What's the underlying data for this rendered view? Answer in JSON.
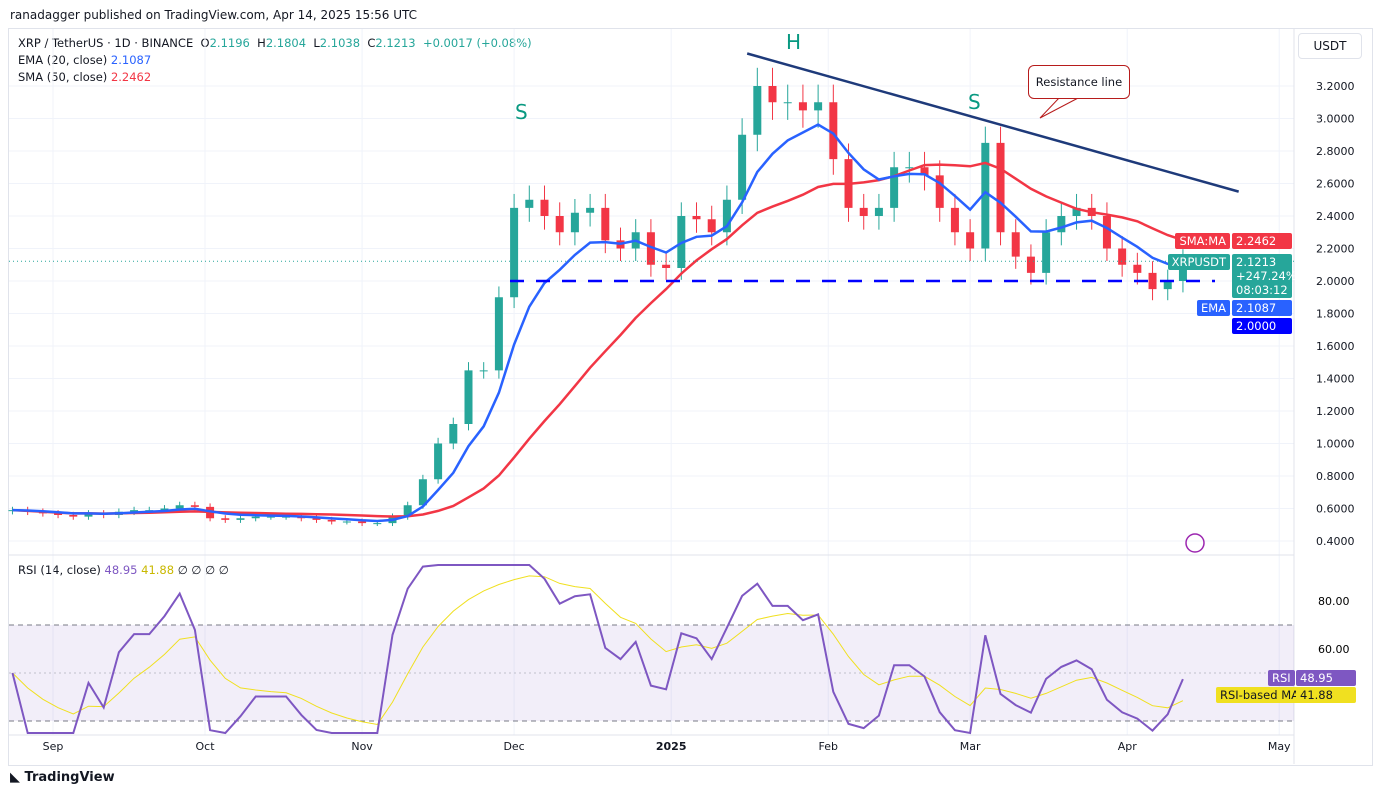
{
  "header": {
    "published": "ranadagger published on TradingView.com, Apr 14, 2025 15:56 UTC",
    "symbol": "XRP / TetherUS · 1D · BINANCE",
    "o": "2.1196",
    "h": "2.1804",
    "l": "2.1038",
    "c": "2.1213",
    "change": "+0.0017 (+0.08%)",
    "ema_label": "EMA (20, close)",
    "ema_value": "2.1087",
    "sma_label": "SMA (50, close)",
    "sma_value": "2.2462",
    "rsi_label": "RSI (14, close)",
    "rsi_value": "48.95",
    "rsi_ma_value": "41.88",
    "rsi_extra": "∅ ∅ ∅ ∅"
  },
  "currency": "USDT",
  "tags": {
    "sma_name": "SMA:MA",
    "sma_val": "2.2462",
    "sym_name": "XRPUSDT",
    "sym_val": "2.1213",
    "sym_pct": "+247.24%",
    "countdown": "08:03:12",
    "ema_name": "EMA",
    "ema_val": "2.1087",
    "level": "2.0000",
    "rsi_name": "RSI",
    "rsi_val": "48.95",
    "rsima_name": "RSI-based MA",
    "rsima_val": "41.88"
  },
  "annotations": {
    "h": "H",
    "s1": "S",
    "s2": "S",
    "callout": "Resistance line"
  },
  "brand": "TradingView",
  "colors": {
    "up": "#26a69a",
    "down": "#f23645",
    "ema": "#2962ff",
    "sma": "#f23645",
    "rsi": "#7e57c2",
    "rsi_ma": "#f0e020",
    "trend": "#1e3a7a",
    "support": "#0000ff"
  },
  "chart_data": {
    "type": "candlestick",
    "interval_days": 3,
    "first_date": "2024-08-24",
    "closes": [
      0.59,
      0.58,
      0.57,
      0.56,
      0.55,
      0.57,
      0.56,
      0.58,
      0.59,
      0.59,
      0.6,
      0.62,
      0.61,
      0.54,
      0.53,
      0.54,
      0.55,
      0.55,
      0.55,
      0.54,
      0.53,
      0.52,
      0.52,
      0.51,
      0.51,
      0.55,
      0.62,
      0.78,
      1.0,
      1.12,
      1.45,
      1.45,
      1.9,
      2.45,
      2.5,
      2.4,
      2.3,
      2.42,
      2.45,
      2.25,
      2.2,
      2.3,
      2.1,
      2.08,
      2.4,
      2.38,
      2.3,
      2.5,
      2.9,
      3.2,
      3.1,
      3.1,
      3.05,
      3.1,
      2.75,
      2.45,
      2.4,
      2.45,
      2.7,
      2.7,
      2.65,
      2.45,
      2.3,
      2.2,
      2.85,
      2.3,
      2.15,
      2.05,
      2.3,
      2.4,
      2.45,
      2.4,
      2.2,
      2.1,
      2.05,
      1.95,
      2.0,
      2.1213
    ],
    "y_ticks": [
      "3.2000",
      "3.0000",
      "2.8000",
      "2.6000",
      "2.4000",
      "2.2000",
      "2.0000",
      "1.8000",
      "1.6000",
      "1.4000",
      "1.2000",
      "1.0000",
      "0.8000",
      "0.6000",
      "0.4000"
    ],
    "ylim": [
      0.3,
      3.45
    ],
    "x_ticks": [
      "Sep",
      "Oct",
      "Nov",
      "Dec",
      "2025",
      "Feb",
      "Mar",
      "Apr",
      "May"
    ],
    "rsi_ticks": [
      "80.00",
      "60.00"
    ],
    "rsi_bands": [
      30,
      70
    ],
    "support_level": 2.0,
    "resistance_line": {
      "from": {
        "date": "2025-01-16",
        "price": 3.4
      },
      "to": {
        "date": "2025-04-23",
        "price": 2.55
      }
    }
  }
}
